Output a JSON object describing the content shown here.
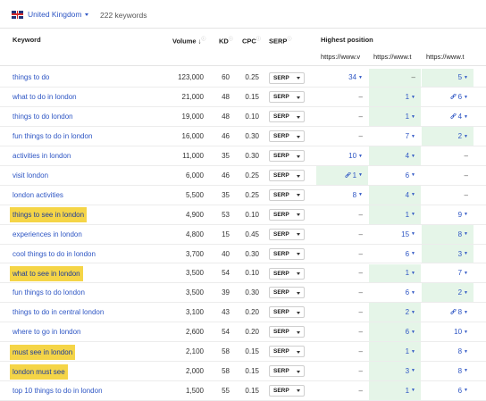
{
  "header": {
    "country": "United Kingdom",
    "keyword_count": "222 keywords"
  },
  "columns": {
    "keyword": "Keyword",
    "volume": "Volume",
    "kd": "KD",
    "cpc": "CPC",
    "serp": "SERP",
    "highest_position": "Highest position",
    "urls": [
      "https://www.v",
      "https://www.t",
      "https://www.t"
    ]
  },
  "rows": [
    {
      "keyword": "things to do",
      "highlight": false,
      "volume": "123,000",
      "kd": "60",
      "cpc": "0.25",
      "serp": "SERP",
      "positions": [
        "34",
        "–",
        "5"
      ],
      "green": [
        false,
        true,
        true
      ],
      "link": [
        false,
        false,
        false
      ]
    },
    {
      "keyword": "what to do in london",
      "highlight": false,
      "volume": "21,000",
      "kd": "48",
      "cpc": "0.15",
      "serp": "SERP",
      "positions": [
        "–",
        "1",
        "6"
      ],
      "green": [
        false,
        true,
        false
      ],
      "link": [
        false,
        false,
        true
      ]
    },
    {
      "keyword": "things to do london",
      "highlight": false,
      "volume": "19,000",
      "kd": "48",
      "cpc": "0.10",
      "serp": "SERP",
      "positions": [
        "–",
        "1",
        "4"
      ],
      "green": [
        false,
        true,
        false
      ],
      "link": [
        false,
        false,
        true
      ]
    },
    {
      "keyword": "fun things to do in london",
      "highlight": false,
      "volume": "16,000",
      "kd": "46",
      "cpc": "0.30",
      "serp": "SERP",
      "positions": [
        "–",
        "7",
        "2"
      ],
      "green": [
        false,
        false,
        true
      ],
      "link": [
        false,
        false,
        false
      ]
    },
    {
      "keyword": "activities in london",
      "highlight": false,
      "volume": "11,000",
      "kd": "35",
      "cpc": "0.30",
      "serp": "SERP",
      "positions": [
        "10",
        "4",
        "–"
      ],
      "green": [
        false,
        true,
        false
      ],
      "link": [
        false,
        false,
        false
      ]
    },
    {
      "keyword": "visit london",
      "highlight": false,
      "volume": "6,000",
      "kd": "46",
      "cpc": "0.25",
      "serp": "SERP",
      "positions": [
        "1",
        "6",
        "–"
      ],
      "green": [
        true,
        false,
        false
      ],
      "link": [
        true,
        false,
        false
      ]
    },
    {
      "keyword": "london activities",
      "highlight": false,
      "volume": "5,500",
      "kd": "35",
      "cpc": "0.25",
      "serp": "SERP",
      "positions": [
        "8",
        "4",
        "–"
      ],
      "green": [
        false,
        true,
        false
      ],
      "link": [
        false,
        false,
        false
      ]
    },
    {
      "keyword": "things to see in london",
      "highlight": true,
      "volume": "4,900",
      "kd": "53",
      "cpc": "0.10",
      "serp": "SERP",
      "positions": [
        "–",
        "1",
        "9"
      ],
      "green": [
        false,
        true,
        false
      ],
      "link": [
        false,
        false,
        false
      ]
    },
    {
      "keyword": "experiences in london",
      "highlight": false,
      "volume": "4,800",
      "kd": "15",
      "cpc": "0.45",
      "serp": "SERP",
      "positions": [
        "–",
        "15",
        "8"
      ],
      "green": [
        false,
        false,
        true
      ],
      "link": [
        false,
        false,
        false
      ]
    },
    {
      "keyword": "cool things to do in london",
      "highlight": false,
      "volume": "3,700",
      "kd": "40",
      "cpc": "0.30",
      "serp": "SERP",
      "positions": [
        "–",
        "6",
        "3"
      ],
      "green": [
        false,
        false,
        true
      ],
      "link": [
        false,
        false,
        false
      ]
    },
    {
      "keyword": "what to see in london",
      "highlight": true,
      "volume": "3,500",
      "kd": "54",
      "cpc": "0.10",
      "serp": "SERP",
      "positions": [
        "–",
        "1",
        "7"
      ],
      "green": [
        false,
        true,
        false
      ],
      "link": [
        false,
        false,
        false
      ]
    },
    {
      "keyword": "fun things to do london",
      "highlight": false,
      "volume": "3,500",
      "kd": "39",
      "cpc": "0.30",
      "serp": "SERP",
      "positions": [
        "–",
        "6",
        "2"
      ],
      "green": [
        false,
        false,
        true
      ],
      "link": [
        false,
        false,
        false
      ]
    },
    {
      "keyword": "things to do in central london",
      "highlight": false,
      "volume": "3,100",
      "kd": "43",
      "cpc": "0.20",
      "serp": "SERP",
      "positions": [
        "–",
        "2",
        "8"
      ],
      "green": [
        false,
        true,
        false
      ],
      "link": [
        false,
        false,
        true
      ]
    },
    {
      "keyword": "where to go in london",
      "highlight": false,
      "volume": "2,600",
      "kd": "54",
      "cpc": "0.20",
      "serp": "SERP",
      "positions": [
        "–",
        "6",
        "10"
      ],
      "green": [
        false,
        true,
        false
      ],
      "link": [
        false,
        false,
        false
      ]
    },
    {
      "keyword": "must see in london",
      "highlight": true,
      "volume": "2,100",
      "kd": "58",
      "cpc": "0.15",
      "serp": "SERP",
      "positions": [
        "–",
        "1",
        "8"
      ],
      "green": [
        false,
        true,
        false
      ],
      "link": [
        false,
        false,
        false
      ]
    },
    {
      "keyword": "london must see",
      "highlight": true,
      "volume": "2,000",
      "kd": "58",
      "cpc": "0.15",
      "serp": "SERP",
      "positions": [
        "–",
        "3",
        "8"
      ],
      "green": [
        false,
        true,
        false
      ],
      "link": [
        false,
        false,
        false
      ]
    },
    {
      "keyword": "top 10 things to do in london",
      "highlight": false,
      "volume": "1,500",
      "kd": "55",
      "cpc": "0.15",
      "serp": "SERP",
      "positions": [
        "–",
        "1",
        "6"
      ],
      "green": [
        false,
        true,
        false
      ],
      "link": [
        false,
        false,
        false
      ]
    }
  ],
  "colors": {
    "link": "#2e56c4",
    "highlight": "#f5d547",
    "green_cell": "#e5f5e8"
  }
}
